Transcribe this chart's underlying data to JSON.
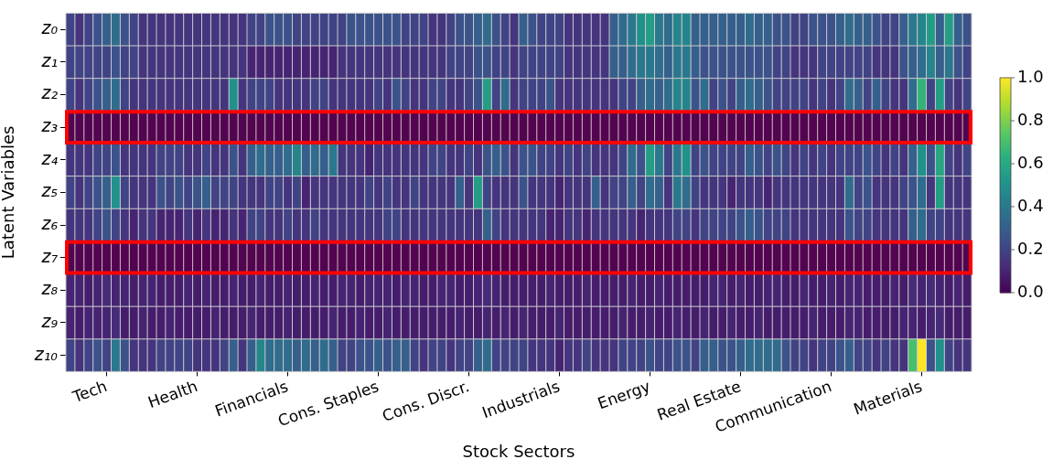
{
  "chart_data": {
    "type": "heatmap",
    "xlabel": "Stock Sectors",
    "ylabel": "Latent Variables",
    "categories": [
      null,
      null,
      null,
      null,
      "Tech",
      null,
      null,
      null,
      null,
      null,
      null,
      null,
      null,
      null,
      "Health",
      null,
      null,
      null,
      null,
      null,
      null,
      null,
      null,
      null,
      "Financials",
      null,
      null,
      null,
      null,
      null,
      null,
      null,
      null,
      null,
      "Cons. Staples",
      null,
      null,
      null,
      null,
      null,
      null,
      null,
      null,
      null,
      "Cons. Discr.",
      null,
      null,
      null,
      null,
      null,
      null,
      null,
      null,
      null,
      "Industrials",
      null,
      null,
      null,
      null,
      null,
      null,
      null,
      null,
      null,
      "Energy",
      null,
      null,
      null,
      null,
      null,
      null,
      null,
      null,
      null,
      "Real Estate",
      null,
      null,
      null,
      null,
      null,
      null,
      null,
      null,
      null,
      "Communication",
      null,
      null,
      null,
      null,
      null,
      null,
      null,
      null,
      null,
      "Materials",
      null,
      null,
      null,
      null,
      null
    ],
    "y_categories": [
      "z₀",
      "z₁",
      "z₂",
      "z₃",
      "z₄",
      "z₅",
      "z₆",
      "z₇",
      "z₈",
      "z₉",
      "z₁₀"
    ],
    "cells": [
      [
        0.2,
        0.15,
        0.2,
        0.25,
        0.3,
        0.35,
        0.25,
        0.2,
        0.15,
        0.15,
        0.15,
        0.15,
        0.15,
        0.15,
        0.15,
        0.15,
        0.15,
        0.15,
        0.15,
        0.15,
        0.2,
        0.2,
        0.25,
        0.25,
        0.25,
        0.2,
        0.2,
        0.2,
        0.2,
        0.2,
        0.2,
        0.25,
        0.25,
        0.25,
        0.25,
        0.25,
        0.25,
        0.2,
        0.2,
        0.2,
        0.15,
        0.15,
        0.2,
        0.25,
        0.25,
        0.3,
        0.35,
        0.25,
        0.2,
        0.15,
        0.3,
        0.25,
        0.2,
        0.2,
        0.2,
        0.15,
        0.15,
        0.15,
        0.15,
        0.15,
        0.3,
        0.35,
        0.4,
        0.5,
        0.55,
        0.4,
        0.35,
        0.45,
        0.45,
        0.3,
        0.3,
        0.3,
        0.3,
        0.3,
        0.3,
        0.35,
        0.3,
        0.3,
        0.25,
        0.25,
        0.2,
        0.2,
        0.25,
        0.25,
        0.25,
        0.3,
        0.35,
        0.3,
        0.3,
        0.25,
        0.2,
        0.2,
        0.3,
        0.4,
        0.45,
        0.55,
        0.3,
        0.55,
        0.3,
        0.25
      ],
      [
        0.2,
        0.2,
        0.2,
        0.2,
        0.2,
        0.25,
        0.2,
        0.2,
        0.15,
        0.15,
        0.15,
        0.15,
        0.15,
        0.15,
        0.15,
        0.15,
        0.15,
        0.15,
        0.15,
        0.15,
        0.1,
        0.1,
        0.1,
        0.1,
        0.1,
        0.1,
        0.1,
        0.1,
        0.1,
        0.1,
        0.15,
        0.15,
        0.15,
        0.15,
        0.15,
        0.15,
        0.15,
        0.15,
        0.15,
        0.15,
        0.15,
        0.15,
        0.2,
        0.2,
        0.2,
        0.25,
        0.25,
        0.2,
        0.2,
        0.15,
        0.2,
        0.2,
        0.2,
        0.2,
        0.2,
        0.15,
        0.15,
        0.15,
        0.15,
        0.15,
        0.3,
        0.3,
        0.35,
        0.4,
        0.4,
        0.35,
        0.3,
        0.4,
        0.4,
        0.3,
        0.25,
        0.25,
        0.25,
        0.25,
        0.25,
        0.25,
        0.25,
        0.25,
        0.2,
        0.2,
        0.15,
        0.15,
        0.15,
        0.2,
        0.2,
        0.2,
        0.2,
        0.2,
        0.2,
        0.15,
        0.15,
        0.15,
        0.25,
        0.3,
        0.35,
        0.45,
        0.3,
        0.4,
        0.25,
        0.2
      ],
      [
        0.2,
        0.15,
        0.2,
        0.25,
        0.3,
        0.35,
        0.2,
        0.15,
        0.15,
        0.15,
        0.15,
        0.15,
        0.15,
        0.15,
        0.15,
        0.15,
        0.15,
        0.15,
        0.5,
        0.15,
        0.2,
        0.2,
        0.2,
        0.15,
        0.15,
        0.15,
        0.15,
        0.2,
        0.2,
        0.15,
        0.15,
        0.15,
        0.15,
        0.15,
        0.2,
        0.15,
        0.25,
        0.2,
        0.15,
        0.15,
        0.2,
        0.2,
        0.15,
        0.15,
        0.2,
        0.25,
        0.55,
        0.2,
        0.35,
        0.15,
        0.2,
        0.2,
        0.2,
        0.25,
        0.15,
        0.15,
        0.15,
        0.15,
        0.15,
        0.15,
        0.15,
        0.2,
        0.2,
        0.3,
        0.35,
        0.3,
        0.35,
        0.45,
        0.45,
        0.25,
        0.35,
        0.2,
        0.25,
        0.2,
        0.3,
        0.35,
        0.3,
        0.25,
        0.2,
        0.2,
        0.2,
        0.2,
        0.15,
        0.2,
        0.15,
        0.2,
        0.35,
        0.3,
        0.2,
        0.3,
        0.2,
        0.15,
        0.15,
        0.35,
        0.65,
        0.2,
        0.55,
        0.2,
        0.15,
        0.2
      ],
      [
        0.01,
        0.01,
        0.01,
        0.01,
        0.01,
        0.01,
        0.01,
        0.01,
        0.01,
        0.01,
        0.01,
        0.01,
        0.01,
        0.01,
        0.01,
        0.01,
        0.01,
        0.01,
        0.01,
        0.01,
        0.01,
        0.01,
        0.01,
        0.01,
        0.01,
        0.01,
        0.01,
        0.01,
        0.01,
        0.01,
        0.01,
        0.01,
        0.01,
        0.01,
        0.01,
        0.01,
        0.01,
        0.01,
        0.01,
        0.01,
        0.01,
        0.01,
        0.01,
        0.01,
        0.01,
        0.01,
        0.01,
        0.01,
        0.01,
        0.01,
        0.01,
        0.01,
        0.01,
        0.01,
        0.01,
        0.01,
        0.01,
        0.01,
        0.01,
        0.01,
        0.01,
        0.01,
        0.01,
        0.01,
        0.01,
        0.01,
        0.01,
        0.01,
        0.01,
        0.01,
        0.01,
        0.01,
        0.01,
        0.01,
        0.01,
        0.01,
        0.01,
        0.01,
        0.01,
        0.01,
        0.01,
        0.01,
        0.01,
        0.01,
        0.01,
        0.01,
        0.01,
        0.01,
        0.01,
        0.01,
        0.01,
        0.01,
        0.01,
        0.01,
        0.01,
        0.01,
        0.01,
        0.01,
        0.01,
        0.01
      ],
      [
        0.15,
        0.15,
        0.15,
        0.2,
        0.2,
        0.25,
        0.15,
        0.15,
        0.15,
        0.15,
        0.2,
        0.2,
        0.2,
        0.15,
        0.15,
        0.2,
        0.15,
        0.15,
        0.25,
        0.15,
        0.3,
        0.35,
        0.3,
        0.3,
        0.35,
        0.45,
        0.3,
        0.35,
        0.3,
        0.4,
        0.15,
        0.15,
        0.15,
        0.1,
        0.15,
        0.15,
        0.15,
        0.15,
        0.15,
        0.15,
        0.2,
        0.2,
        0.15,
        0.15,
        0.2,
        0.15,
        0.25,
        0.3,
        0.25,
        0.15,
        0.25,
        0.25,
        0.2,
        0.2,
        0.15,
        0.2,
        0.15,
        0.2,
        0.15,
        0.15,
        0.15,
        0.2,
        0.35,
        0.25,
        0.55,
        0.4,
        0.2,
        0.4,
        0.5,
        0.2,
        0.25,
        0.2,
        0.2,
        0.2,
        0.2,
        0.3,
        0.25,
        0.2,
        0.25,
        0.2,
        0.15,
        0.2,
        0.15,
        0.2,
        0.15,
        0.2,
        0.2,
        0.2,
        0.25,
        0.2,
        0.15,
        0.2,
        0.15,
        0.3,
        0.5,
        0.25,
        0.6,
        0.2,
        0.15,
        0.2
      ],
      [
        0.2,
        0.15,
        0.2,
        0.25,
        0.3,
        0.5,
        0.2,
        0.15,
        0.15,
        0.15,
        0.25,
        0.2,
        0.25,
        0.2,
        0.25,
        0.3,
        0.2,
        0.2,
        0.2,
        0.15,
        0.15,
        0.15,
        0.2,
        0.2,
        0.15,
        0.2,
        0.1,
        0.15,
        0.15,
        0.15,
        0.15,
        0.15,
        0.15,
        0.2,
        0.15,
        0.2,
        0.15,
        0.15,
        0.2,
        0.15,
        0.15,
        0.15,
        0.15,
        0.3,
        0.15,
        0.55,
        0.2,
        0.15,
        0.15,
        0.15,
        0.25,
        0.15,
        0.15,
        0.15,
        0.1,
        0.15,
        0.15,
        0.15,
        0.3,
        0.15,
        0.2,
        0.2,
        0.3,
        0.2,
        0.35,
        0.3,
        0.15,
        0.4,
        0.35,
        0.2,
        0.15,
        0.15,
        0.15,
        0.1,
        0.15,
        0.15,
        0.15,
        0.1,
        0.15,
        0.15,
        0.15,
        0.15,
        0.15,
        0.15,
        0.15,
        0.15,
        0.35,
        0.2,
        0.25,
        0.15,
        0.15,
        0.15,
        0.2,
        0.25,
        0.35,
        0.15,
        0.55,
        0.15,
        0.15,
        0.15
      ],
      [
        0.15,
        0.15,
        0.15,
        0.2,
        0.25,
        0.2,
        0.15,
        0.1,
        0.15,
        0.15,
        0.1,
        0.1,
        0.1,
        0.15,
        0.1,
        0.15,
        0.1,
        0.1,
        0.15,
        0.1,
        0.2,
        0.2,
        0.15,
        0.15,
        0.2,
        0.15,
        0.15,
        0.2,
        0.15,
        0.15,
        0.15,
        0.15,
        0.15,
        0.15,
        0.15,
        0.2,
        0.2,
        0.15,
        0.15,
        0.15,
        0.15,
        0.15,
        0.15,
        0.15,
        0.15,
        0.15,
        0.3,
        0.2,
        0.15,
        0.15,
        0.15,
        0.15,
        0.15,
        0.1,
        0.1,
        0.15,
        0.15,
        0.1,
        0.15,
        0.15,
        0.15,
        0.15,
        0.15,
        0.1,
        0.15,
        0.15,
        0.15,
        0.2,
        0.2,
        0.15,
        0.2,
        0.2,
        0.2,
        0.2,
        0.25,
        0.3,
        0.25,
        0.2,
        0.2,
        0.2,
        0.15,
        0.15,
        0.15,
        0.15,
        0.15,
        0.15,
        0.25,
        0.2,
        0.2,
        0.15,
        0.15,
        0.15,
        0.15,
        0.3,
        0.35,
        0.2,
        0.2,
        0.15,
        0.15,
        0.15
      ],
      [
        0.01,
        0.01,
        0.01,
        0.01,
        0.01,
        0.01,
        0.01,
        0.01,
        0.01,
        0.01,
        0.01,
        0.01,
        0.01,
        0.01,
        0.01,
        0.01,
        0.01,
        0.01,
        0.01,
        0.01,
        0.01,
        0.01,
        0.01,
        0.01,
        0.01,
        0.01,
        0.01,
        0.01,
        0.01,
        0.01,
        0.01,
        0.01,
        0.01,
        0.01,
        0.01,
        0.01,
        0.01,
        0.01,
        0.01,
        0.01,
        0.01,
        0.01,
        0.01,
        0.01,
        0.01,
        0.01,
        0.01,
        0.01,
        0.01,
        0.01,
        0.01,
        0.01,
        0.01,
        0.01,
        0.01,
        0.01,
        0.01,
        0.01,
        0.01,
        0.01,
        0.01,
        0.01,
        0.01,
        0.01,
        0.01,
        0.01,
        0.01,
        0.01,
        0.01,
        0.01,
        0.01,
        0.01,
        0.01,
        0.01,
        0.01,
        0.01,
        0.01,
        0.01,
        0.01,
        0.01,
        0.01,
        0.01,
        0.01,
        0.01,
        0.01,
        0.01,
        0.01,
        0.01,
        0.01,
        0.01,
        0.01,
        0.01,
        0.01,
        0.01,
        0.01,
        0.01,
        0.01,
        0.01,
        0.01,
        0.01
      ],
      [
        0.1,
        0.1,
        0.08,
        0.1,
        0.12,
        0.1,
        0.1,
        0.08,
        0.1,
        0.1,
        0.08,
        0.08,
        0.08,
        0.1,
        0.08,
        0.1,
        0.08,
        0.08,
        0.1,
        0.08,
        0.08,
        0.1,
        0.08,
        0.08,
        0.1,
        0.08,
        0.08,
        0.1,
        0.08,
        0.08,
        0.1,
        0.1,
        0.08,
        0.1,
        0.1,
        0.1,
        0.08,
        0.1,
        0.1,
        0.08,
        0.08,
        0.1,
        0.1,
        0.08,
        0.08,
        0.1,
        0.12,
        0.1,
        0.08,
        0.08,
        0.08,
        0.08,
        0.08,
        0.1,
        0.08,
        0.08,
        0.08,
        0.1,
        0.08,
        0.08,
        0.08,
        0.08,
        0.1,
        0.08,
        0.08,
        0.1,
        0.08,
        0.08,
        0.08,
        0.08,
        0.08,
        0.1,
        0.1,
        0.08,
        0.1,
        0.08,
        0.08,
        0.1,
        0.1,
        0.08,
        0.08,
        0.1,
        0.08,
        0.08,
        0.1,
        0.08,
        0.1,
        0.1,
        0.08,
        0.08,
        0.08,
        0.1,
        0.08,
        0.12,
        0.1,
        0.12,
        0.1,
        0.08,
        0.1,
        0.08
      ],
      [
        0.1,
        0.08,
        0.1,
        0.1,
        0.1,
        0.12,
        0.08,
        0.08,
        0.1,
        0.08,
        0.08,
        0.1,
        0.08,
        0.08,
        0.08,
        0.08,
        0.1,
        0.08,
        0.08,
        0.08,
        0.1,
        0.08,
        0.08,
        0.08,
        0.1,
        0.08,
        0.08,
        0.08,
        0.08,
        0.1,
        0.08,
        0.08,
        0.1,
        0.08,
        0.08,
        0.1,
        0.08,
        0.08,
        0.08,
        0.08,
        0.08,
        0.08,
        0.08,
        0.1,
        0.08,
        0.08,
        0.1,
        0.08,
        0.1,
        0.08,
        0.1,
        0.08,
        0.08,
        0.08,
        0.1,
        0.08,
        0.08,
        0.08,
        0.08,
        0.08,
        0.08,
        0.1,
        0.08,
        0.08,
        0.1,
        0.08,
        0.08,
        0.1,
        0.08,
        0.08,
        0.1,
        0.08,
        0.08,
        0.1,
        0.08,
        0.08,
        0.1,
        0.08,
        0.08,
        0.08,
        0.08,
        0.08,
        0.1,
        0.08,
        0.08,
        0.08,
        0.1,
        0.1,
        0.08,
        0.08,
        0.08,
        0.08,
        0.1,
        0.1,
        0.08,
        0.1,
        0.12,
        0.08,
        0.08,
        0.08
      ],
      [
        0.2,
        0.15,
        0.2,
        0.25,
        0.2,
        0.4,
        0.25,
        0.15,
        0.15,
        0.15,
        0.2,
        0.2,
        0.2,
        0.2,
        0.15,
        0.15,
        0.15,
        0.2,
        0.3,
        0.15,
        0.3,
        0.45,
        0.35,
        0.35,
        0.35,
        0.3,
        0.35,
        0.3,
        0.35,
        0.3,
        0.2,
        0.2,
        0.25,
        0.25,
        0.3,
        0.25,
        0.3,
        0.3,
        0.2,
        0.15,
        0.2,
        0.2,
        0.15,
        0.2,
        0.2,
        0.3,
        0.35,
        0.2,
        0.2,
        0.2,
        0.2,
        0.15,
        0.15,
        0.15,
        0.1,
        0.15,
        0.15,
        0.2,
        0.15,
        0.15,
        0.15,
        0.2,
        0.2,
        0.2,
        0.25,
        0.2,
        0.2,
        0.25,
        0.25,
        0.2,
        0.3,
        0.3,
        0.25,
        0.25,
        0.3,
        0.35,
        0.35,
        0.35,
        0.35,
        0.25,
        0.2,
        0.2,
        0.15,
        0.2,
        0.2,
        0.25,
        0.3,
        0.2,
        0.2,
        0.15,
        0.2,
        0.15,
        0.15,
        0.7,
        1.0,
        0.25,
        0.5,
        0.2,
        0.15,
        0.15
      ]
    ],
    "clim": [
      0,
      1
    ],
    "cticks": [
      {
        "value": 0,
        "label": "0.0"
      },
      {
        "value": 0.2,
        "label": "0.2"
      },
      {
        "value": 0.4,
        "label": "0.4"
      },
      {
        "value": 0.6,
        "label": "0.6"
      },
      {
        "value": 0.8,
        "label": "0.8"
      },
      {
        "value": 1,
        "label": "1.0"
      }
    ],
    "bands": [
      {
        "axis": "y",
        "from": "z₃",
        "to": "z₃",
        "color": "#ff0000"
      },
      {
        "axis": "y",
        "from": "z₇",
        "to": "z₇",
        "color": "#ff0000"
      }
    ]
  }
}
